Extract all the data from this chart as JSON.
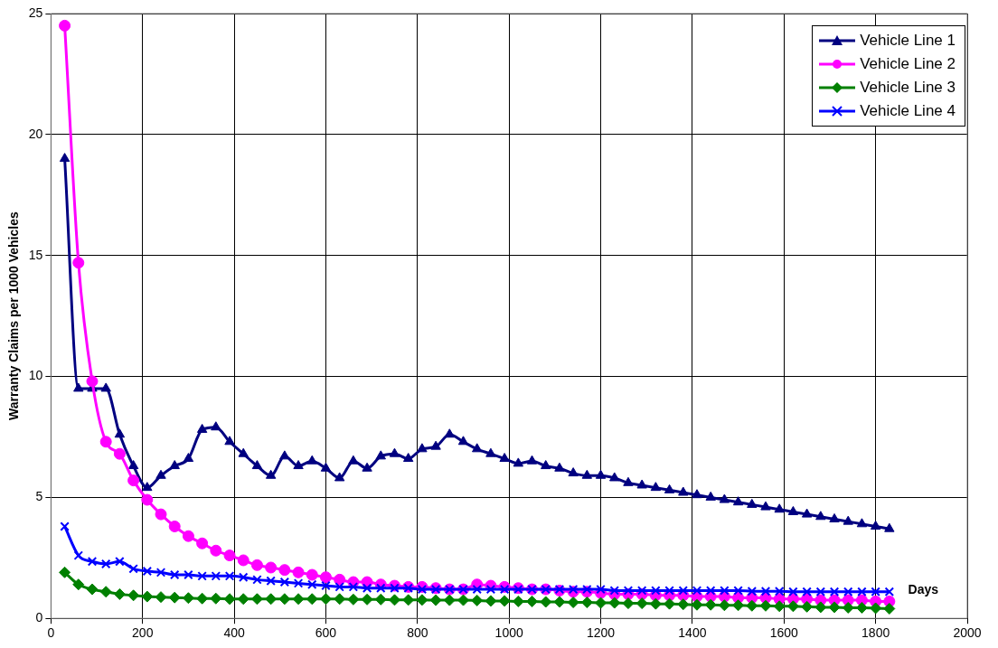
{
  "chart_data": {
    "type": "line",
    "xlabel": "Days",
    "ylabel": "Warranty Claims per 1000 Vehicles",
    "x": [
      30,
      60,
      90,
      120,
      150,
      180,
      210,
      240,
      270,
      300,
      330,
      360,
      390,
      420,
      450,
      480,
      510,
      540,
      570,
      600,
      630,
      660,
      690,
      720,
      750,
      780,
      810,
      840,
      870,
      900,
      930,
      960,
      990,
      1020,
      1050,
      1080,
      1110,
      1140,
      1170,
      1200,
      1230,
      1260,
      1290,
      1320,
      1350,
      1380,
      1410,
      1440,
      1470,
      1500,
      1530,
      1560,
      1590,
      1620,
      1650,
      1680,
      1710,
      1740,
      1770,
      1800,
      1830
    ],
    "series": [
      {
        "name": "Vehicle Line 1",
        "color": "#000080",
        "marker": "triangle",
        "values": [
          19.0,
          9.5,
          9.5,
          9.5,
          7.6,
          6.3,
          5.4,
          5.9,
          6.3,
          6.6,
          7.8,
          7.9,
          7.3,
          6.8,
          6.3,
          5.9,
          6.7,
          6.3,
          6.5,
          6.2,
          5.8,
          6.5,
          6.2,
          6.7,
          6.8,
          6.6,
          7.0,
          7.1,
          7.6,
          7.3,
          7.0,
          6.8,
          6.6,
          6.4,
          6.5,
          6.3,
          6.2,
          6.0,
          5.9,
          5.9,
          5.8,
          5.6,
          5.5,
          5.4,
          5.3,
          5.2,
          5.1,
          5.0,
          4.9,
          4.8,
          4.7,
          4.6,
          4.5,
          4.4,
          4.3,
          4.2,
          4.1,
          4.0,
          3.9,
          3.8,
          3.7
        ]
      },
      {
        "name": "Vehicle Line 2",
        "color": "#ff00ff",
        "marker": "circle",
        "values": [
          24.5,
          14.7,
          9.8,
          7.3,
          6.8,
          5.7,
          4.9,
          4.3,
          3.8,
          3.4,
          3.1,
          2.8,
          2.6,
          2.4,
          2.2,
          2.1,
          2.0,
          1.9,
          1.8,
          1.7,
          1.6,
          1.5,
          1.5,
          1.4,
          1.35,
          1.3,
          1.3,
          1.25,
          1.2,
          1.2,
          1.4,
          1.35,
          1.3,
          1.25,
          1.2,
          1.2,
          1.15,
          1.1,
          1.1,
          1.05,
          1.0,
          1.0,
          1.0,
          0.95,
          0.95,
          0.95,
          0.9,
          0.9,
          0.9,
          0.85,
          0.85,
          0.85,
          0.8,
          0.8,
          0.8,
          0.75,
          0.75,
          0.75,
          0.75,
          0.7,
          0.7
        ]
      },
      {
        "name": "Vehicle Line 3",
        "color": "#008000",
        "marker": "diamond",
        "values": [
          1.9,
          1.4,
          1.2,
          1.1,
          1.0,
          0.95,
          0.9,
          0.88,
          0.86,
          0.84,
          0.82,
          0.82,
          0.8,
          0.8,
          0.8,
          0.8,
          0.8,
          0.8,
          0.8,
          0.8,
          0.8,
          0.78,
          0.78,
          0.78,
          0.76,
          0.76,
          0.76,
          0.75,
          0.75,
          0.75,
          0.74,
          0.72,
          0.72,
          0.7,
          0.7,
          0.68,
          0.68,
          0.66,
          0.66,
          0.64,
          0.64,
          0.62,
          0.62,
          0.6,
          0.6,
          0.58,
          0.56,
          0.56,
          0.54,
          0.54,
          0.52,
          0.52,
          0.5,
          0.5,
          0.48,
          0.46,
          0.46,
          0.44,
          0.44,
          0.42,
          0.4
        ]
      },
      {
        "name": "Vehicle Line 4",
        "color": "#0000ff",
        "marker": "cross",
        "values": [
          3.8,
          2.6,
          2.35,
          2.25,
          2.35,
          2.05,
          1.95,
          1.9,
          1.8,
          1.8,
          1.75,
          1.75,
          1.75,
          1.7,
          1.6,
          1.55,
          1.5,
          1.45,
          1.4,
          1.35,
          1.3,
          1.3,
          1.25,
          1.25,
          1.25,
          1.25,
          1.2,
          1.2,
          1.2,
          1.2,
          1.2,
          1.2,
          1.2,
          1.2,
          1.2,
          1.2,
          1.2,
          1.2,
          1.2,
          1.2,
          1.15,
          1.15,
          1.15,
          1.15,
          1.15,
          1.15,
          1.15,
          1.15,
          1.15,
          1.15,
          1.12,
          1.12,
          1.12,
          1.1,
          1.1,
          1.1,
          1.1,
          1.1,
          1.1,
          1.1,
          1.1
        ]
      }
    ],
    "xlim": [
      0,
      2000
    ],
    "xticks": [
      0,
      200,
      400,
      600,
      800,
      1000,
      1200,
      1400,
      1600,
      1800,
      2000
    ],
    "ylim": [
      0,
      25
    ],
    "yticks": [
      0,
      5,
      10,
      15,
      20,
      25
    ],
    "grid": true,
    "legend": "top right",
    "line_style": "solid"
  }
}
